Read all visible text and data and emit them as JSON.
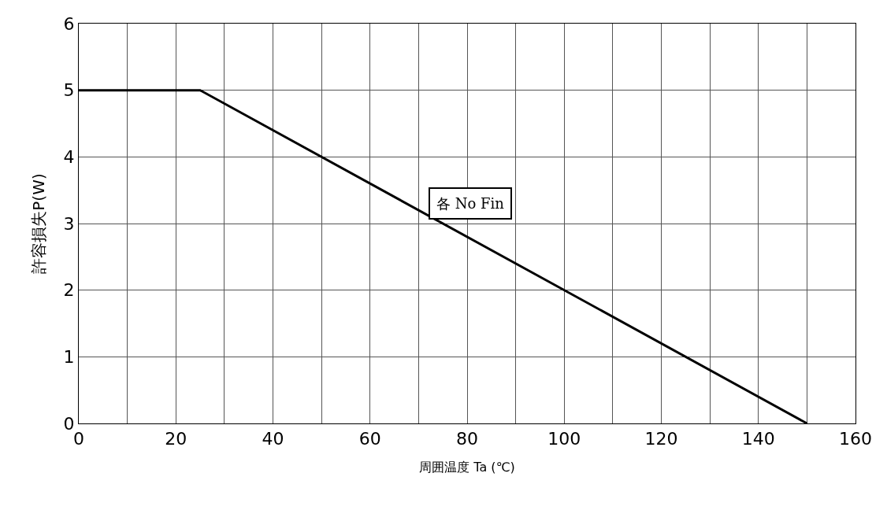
{
  "chart_data": {
    "type": "line",
    "xlabel": "周囲温度 Ta (℃)",
    "ylabel": "許容損失P(W)",
    "x": [
      0,
      25,
      150
    ],
    "series": [
      {
        "color": "#000000",
        "values": [
          5,
          5,
          0
        ]
      }
    ],
    "xlim": [
      0,
      160
    ],
    "ylim": [
      0,
      6
    ],
    "xticks": [
      0,
      {
        "value": 10,
        "label": null
      },
      20,
      {
        "value": 30,
        "label": null
      },
      40,
      {
        "value": 50,
        "label": null
      },
      60,
      {
        "value": 70,
        "label": null
      },
      80,
      {
        "value": 90,
        "label": null
      },
      100,
      {
        "value": 110,
        "label": null
      },
      120,
      {
        "value": 130,
        "label": null
      },
      140,
      {
        "value": 150,
        "label": null
      },
      160
    ],
    "yticks": [
      0,
      1,
      2,
      3,
      4,
      5,
      6
    ],
    "grid": true,
    "marker": "none",
    "line_style": "solid",
    "annotations": [
      "各 No Fin"
    ]
  }
}
